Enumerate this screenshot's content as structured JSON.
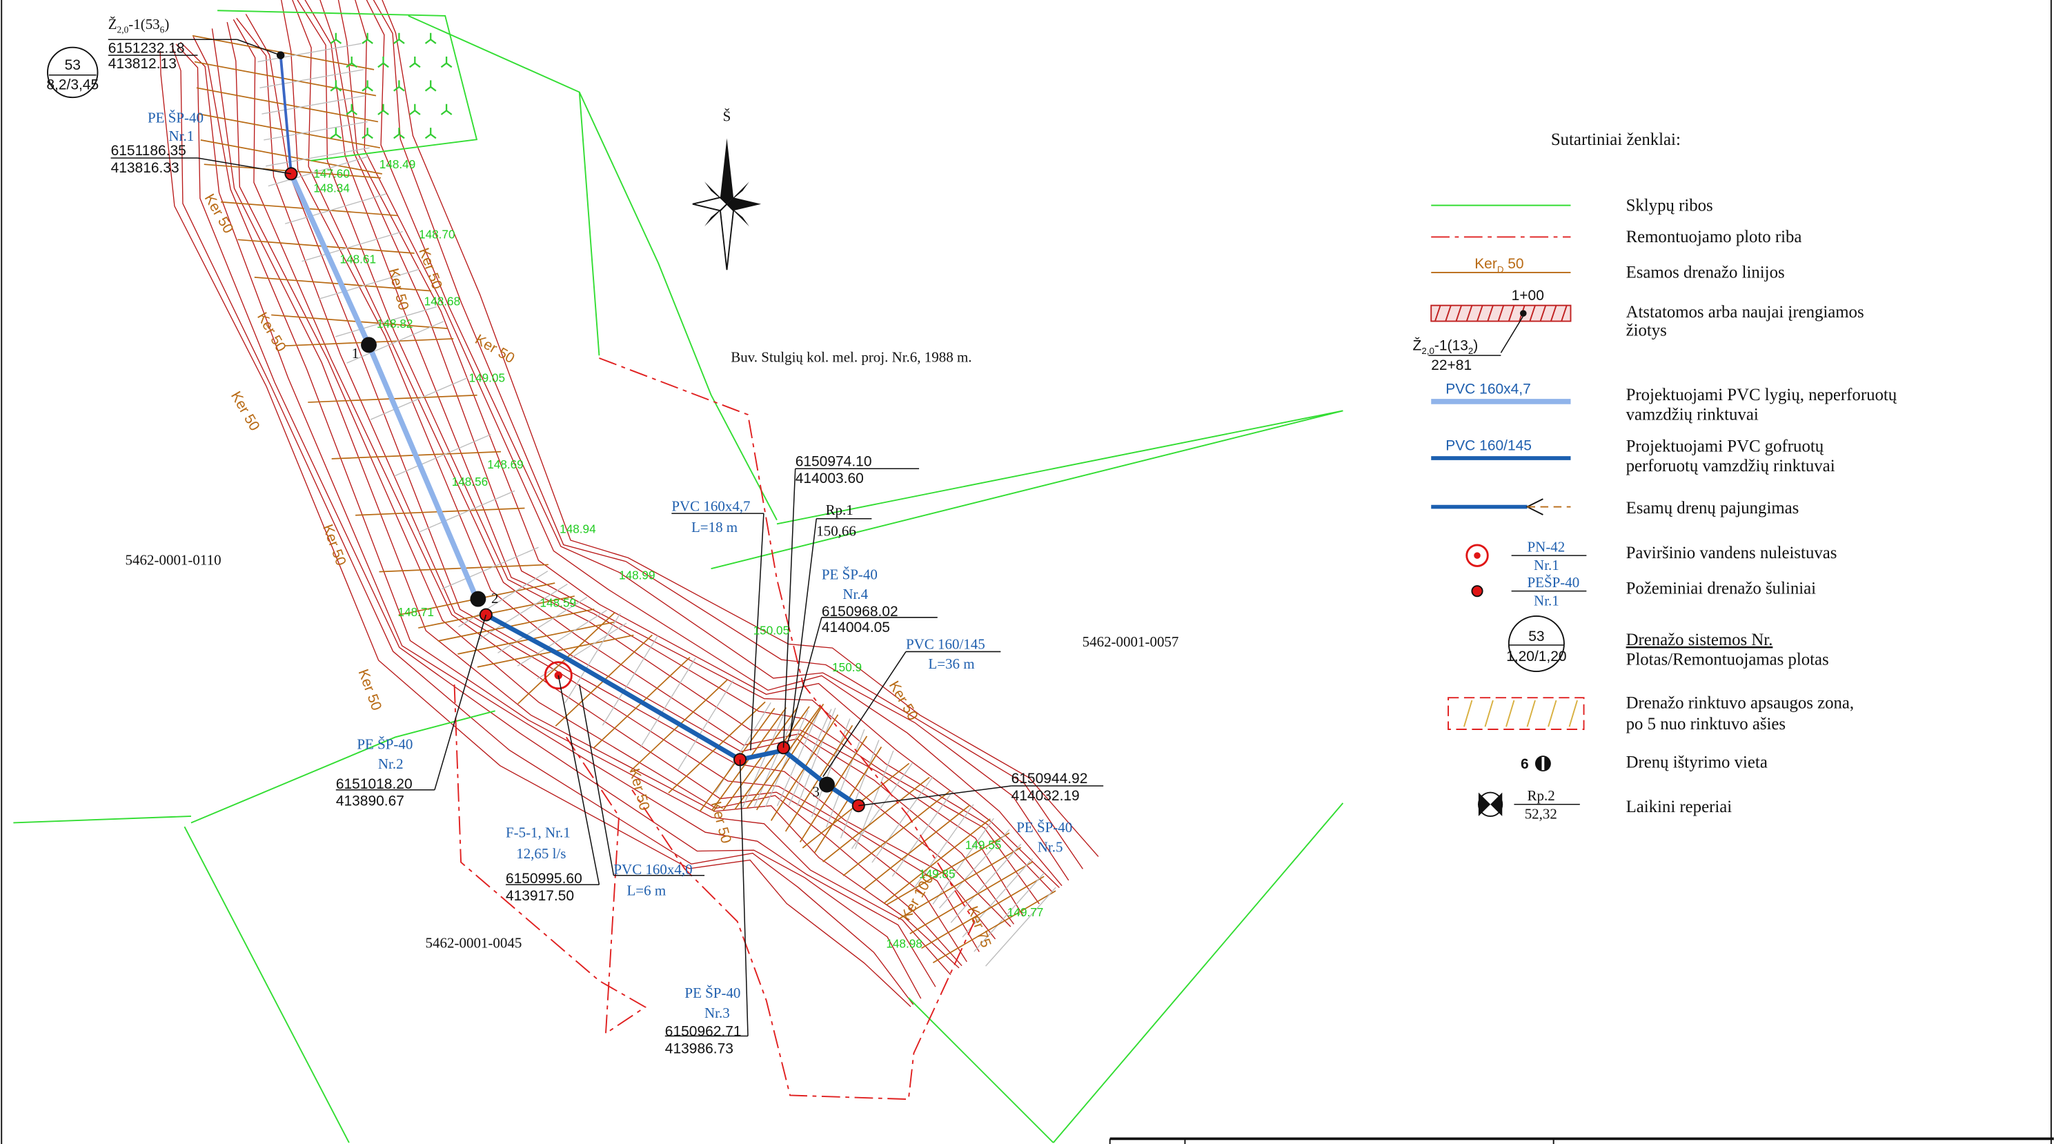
{
  "title_note": "Buv. Stulgių kol. mel. proj. Nr.6, 1988 m.",
  "north": "Š",
  "system": {
    "number": "53",
    "area": "8,2/3,45"
  },
  "outlet": {
    "name": [
      "Ž",
      "2,0",
      "-1(53",
      "6",
      ")"
    ],
    "x": "6151232.18",
    "y": "413812.13"
  },
  "wells": [
    {
      "type": "PE ŠP-40",
      "number": "Nr.1",
      "x": "6151186.35",
      "y": "413816.33"
    },
    {
      "type": "PE ŠP-40",
      "number": "Nr.2",
      "x": "6151018.20",
      "y": "413890.67"
    },
    {
      "type": "PE ŠP-40",
      "number": "Nr.3",
      "x": "6150962.71",
      "y": "413986.73"
    },
    {
      "type": "PE ŠP-40",
      "number": "Nr.4",
      "x": "6150968.02",
      "y": "414004.05"
    },
    {
      "type": "PE ŠP-40",
      "number": "Nr.5",
      "x": "6150944.92",
      "y": "414032.19"
    }
  ],
  "pipes": [
    {
      "label": "PVC 160x4,7",
      "length": "L=18 m"
    },
    {
      "label": "PVC 160/145",
      "length": "L=36 m"
    },
    {
      "label": "PVC 160x4,0",
      "length": "L=6 m"
    }
  ],
  "surface_outlet": {
    "name": "F-5-1, Nr.1",
    "flow": "12,65 l/s",
    "x": "6150995.60",
    "y": "413917.50"
  },
  "point": {
    "x": "6150974.10",
    "y": "414003.60"
  },
  "benchmark": {
    "name": "Rp.1",
    "elevation": "150,66"
  },
  "parcels": [
    "5462-0001-0110",
    "5462-0001-0057",
    "5462-0001-0045"
  ],
  "collector_marks": [
    "1",
    "2",
    "3"
  ],
  "elevations": [
    "148.49",
    "147.60",
    "148.34",
    "148.61",
    "148.70",
    "148.82",
    "148.68",
    "149.05",
    "148.69",
    "148.56",
    "148.94",
    "148.99",
    "148.59",
    "148.71",
    "150.05",
    "150.9",
    "149.77",
    "149.85",
    "148.98",
    "149.55"
  ],
  "drain_labels": [
    "Ker 50",
    "Ker 50",
    "Ker 50",
    "Ker 50",
    "Ker 50",
    "Ker 50",
    "Ker 50",
    "Ker 50",
    "Ker 50",
    "Ker 50",
    "Ker 50",
    "Ker 75",
    "Ker 100"
  ],
  "legend": {
    "title": "Sutartiniai ženklai:",
    "boundaries": "Sklypų ribos",
    "repair_area": "Remontuojamo ploto riba",
    "existing_sample": "Ker",
    "existing_sample_sub": "D",
    "existing_sample_size": "50",
    "existing": "Esamos drenažo linijos",
    "outlet_station": "1+00",
    "outlet_sample": [
      "Ž",
      "2,0",
      "-1(13",
      "2",
      ")"
    ],
    "outlet_station_end": "22+81",
    "outlet_text": [
      "Atstatomos arba naujai įrengiamos",
      "žiotys"
    ],
    "pvc_plain_sample": "PVC 160x4,7",
    "pvc_plain": [
      "Projektuojami PVC lygių, neperforuotų",
      "vamzdžių rinktuvai"
    ],
    "pvc_corr_sample": "PVC 160/145",
    "pvc_corr": [
      "Projektuojami PVC gofruotų",
      "perforuotų vamzdžių rinktuvai"
    ],
    "connection": "Esamų drenų pajungimas",
    "pn_name": "PN-42",
    "pn_number": "Nr.1",
    "pn": "Paviršinio vandens nuleistuvas",
    "well_name": "PEŠP-40",
    "well_number": "Nr.1",
    "well": "Požeminiai drenažo šuliniai",
    "system_number": "53",
    "system_area": "1,20/1,20",
    "system": [
      "Drenažo sistemos Nr.",
      "Plotas/Remontuojamas plotas"
    ],
    "zone": [
      "Drenažo rinktuvo apsaugos zona,",
      "po 5 nuo rinktuvo ašies"
    ],
    "survey_number": "6",
    "survey": "Drenų ištyrimo vieta",
    "temp_bm_name": "Rp.2",
    "temp_bm_value": "52,32",
    "temp_bm": "Laikini reperiai"
  }
}
